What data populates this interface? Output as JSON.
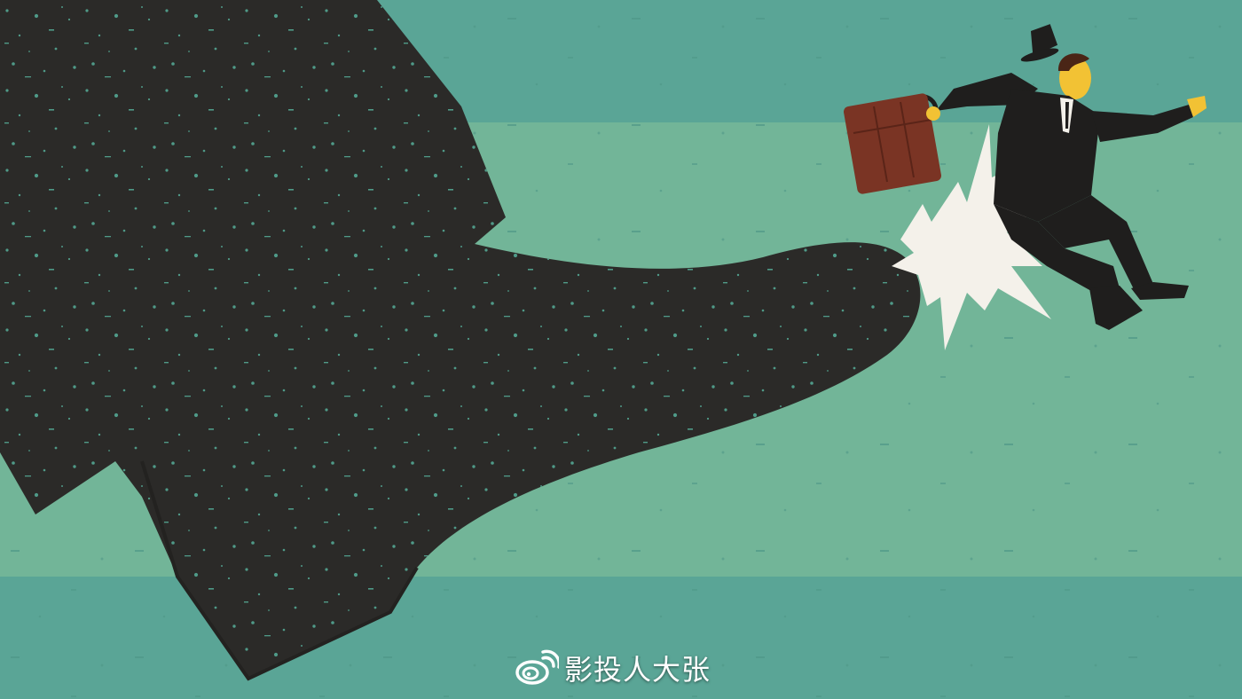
{
  "illustration": {
    "subject": "giant-boot-kicking-businessman",
    "colors": {
      "sky_band": "#5aa596",
      "middle_band": "#72b598",
      "boot": "#2b2a28",
      "speckle": "#4f9a88",
      "impact_burst": "#f4f1ea",
      "briefcase": "#7a3424",
      "skin": "#f2c234",
      "suit": "#1f1e1d"
    }
  },
  "watermark": {
    "icon": "weibo-icon",
    "text": "影投人大张"
  }
}
